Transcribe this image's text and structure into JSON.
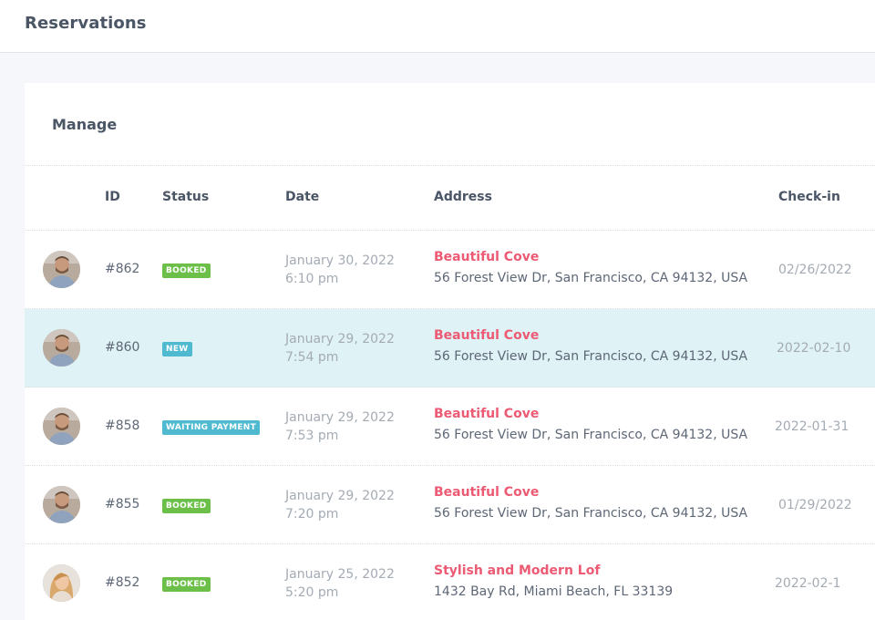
{
  "header": {
    "title": "Reservations"
  },
  "card": {
    "title": "Manage"
  },
  "table": {
    "columns": {
      "id": "ID",
      "status": "Status",
      "date": "Date",
      "address": "Address",
      "checkin": "Check-in"
    },
    "rows": [
      {
        "id": "#862",
        "status": "BOOKED",
        "date": "January 30, 2022",
        "time": "6:10 pm",
        "property": "Beautiful Cove",
        "address": "56 Forest View Dr, San Francisco, CA 94132, USA",
        "checkin": "02/26/2022"
      },
      {
        "id": "#860",
        "status": "NEW",
        "date": "January 29, 2022",
        "time": "7:54 pm",
        "property": "Beautiful Cove",
        "address": "56 Forest View Dr, San Francisco, CA 94132, USA",
        "checkin": "2022-02-10"
      },
      {
        "id": "#858",
        "status": "WAITING PAYMENT",
        "date": "January 29, 2022",
        "time": "7:53 pm",
        "property": "Beautiful Cove",
        "address": "56 Forest View Dr, San Francisco, CA 94132, USA",
        "checkin": "2022-01-31"
      },
      {
        "id": "#855",
        "status": "BOOKED",
        "date": "January 29, 2022",
        "time": "7:20 pm",
        "property": "Beautiful Cove",
        "address": "56 Forest View Dr, San Francisco, CA 94132, USA",
        "checkin": "01/29/2022"
      },
      {
        "id": "#852",
        "status": "BOOKED",
        "date": "January 25, 2022",
        "time": "5:20 pm",
        "property": "Stylish and Modern Lof",
        "address": "1432 Bay Rd, Miami Beach, FL 33139",
        "checkin": "2022-02-1"
      }
    ]
  },
  "colors": {
    "accent_link": "#ec5a73",
    "badge_booked": "#6cc04a",
    "badge_new": "#4fb9d0",
    "row_highlight": "#dff2f6"
  },
  "icons": [
    "user-avatar"
  ]
}
